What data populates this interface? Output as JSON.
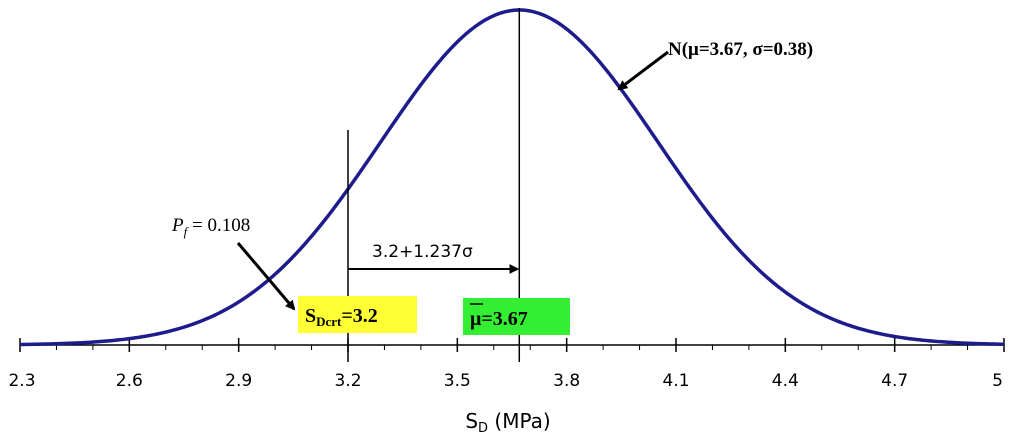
{
  "chart_data": {
    "type": "line",
    "title": "",
    "xlabel": "S_D (MPa)",
    "xlabel_main": "S",
    "xlabel_sub": "D",
    "xlabel_unit": " (MPa)",
    "ylabel": "",
    "xlim": [
      2.3,
      5.0
    ],
    "xticks": [
      "2.3",
      "2.6",
      "2.9",
      "3.2",
      "3.5",
      "3.8",
      "4.1",
      "4.4",
      "4.7",
      "5"
    ],
    "grid": false,
    "series": [
      {
        "name": "N(μ=3.67, σ=0.38)",
        "distribution": "normal",
        "mean": 3.67,
        "sd": 0.38,
        "x_range": [
          2.3,
          5.0
        ],
        "color": "#1c1c8c"
      }
    ],
    "vlines": [
      {
        "x": 3.2,
        "label": "S_Dcrt=3.2"
      },
      {
        "x": 3.67,
        "label": "μ̄=3.67"
      }
    ],
    "annotations": {
      "distribution_label": "N(μ=3.67, σ=0.38)",
      "pf_label": {
        "symbol": "P",
        "subscript": "f",
        "text": " = 0.108"
      },
      "shift_label": "3.2+1.237σ",
      "crit_box": {
        "main": "S",
        "sub": "Dcrt",
        "text": "=3.2",
        "color": "#ffff33"
      },
      "mean_box": {
        "main": "μ",
        "text": "=3.67",
        "color": "#33ee33"
      }
    }
  }
}
